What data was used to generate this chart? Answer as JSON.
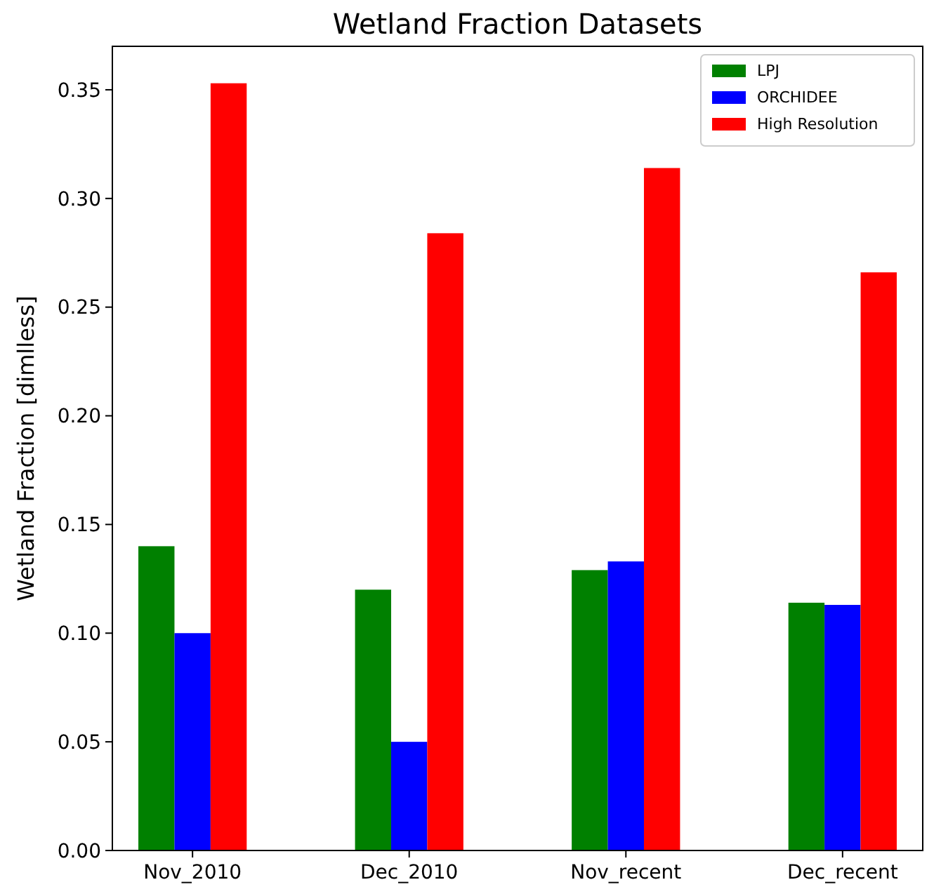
{
  "chart_data": {
    "type": "bar",
    "title": "Wetland Fraction Datasets",
    "ylabel": "Wetland Fraction [dimlless]",
    "categories": [
      "Nov_2010",
      "Dec_2010",
      "Nov_recent",
      "Dec_recent"
    ],
    "series": [
      {
        "name": "LPJ",
        "color": "#008000",
        "values": [
          0.14,
          0.12,
          0.129,
          0.114
        ]
      },
      {
        "name": "ORCHIDEE",
        "color": "#0000ff",
        "values": [
          0.1,
          0.05,
          0.133,
          0.113
        ]
      },
      {
        "name": "High Resolution",
        "color": "#ff0000",
        "values": [
          0.353,
          0.284,
          0.314,
          0.266
        ]
      }
    ],
    "ylim": [
      0,
      0.37
    ],
    "yticks": [
      {
        "value": 0,
        "label": "0.00"
      },
      {
        "value": 0.05,
        "label": "0.05"
      },
      {
        "value": 0.1,
        "label": "0.10"
      },
      {
        "value": 0.15,
        "label": "0.15"
      },
      {
        "value": 0.2,
        "label": "0.20"
      },
      {
        "value": 0.25,
        "label": "0.25"
      },
      {
        "value": 0.3,
        "label": "0.30"
      },
      {
        "value": 0.35,
        "label": "0.35"
      }
    ],
    "legend": "top right"
  }
}
